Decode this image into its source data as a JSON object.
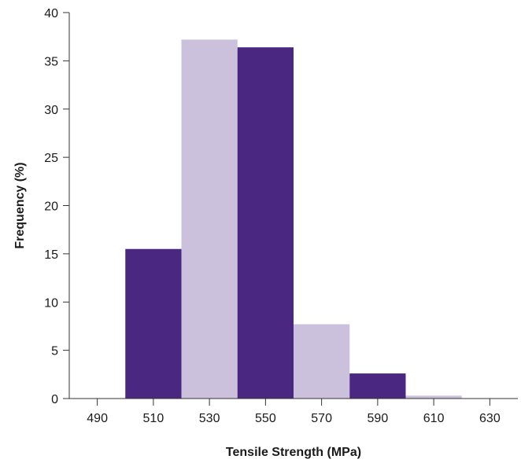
{
  "chart_data": {
    "type": "bar",
    "title": "",
    "xlabel": "Tensile Strength (MPa)",
    "ylabel": "Frequency (%)",
    "bin_width": 20,
    "xlim": [
      480,
      640
    ],
    "ylim": [
      0,
      40
    ],
    "x_ticks": [
      490,
      510,
      530,
      550,
      570,
      590,
      610,
      630
    ],
    "y_ticks": [
      0,
      5,
      10,
      15,
      20,
      25,
      30,
      35,
      40
    ],
    "bins": [
      {
        "start": 500,
        "end": 520,
        "value": 15.5,
        "color": "#4a2882"
      },
      {
        "start": 520,
        "end": 540,
        "value": 37.2,
        "color": "#cbc1dd"
      },
      {
        "start": 540,
        "end": 560,
        "value": 36.4,
        "color": "#4a2882"
      },
      {
        "start": 560,
        "end": 580,
        "value": 7.7,
        "color": "#cbc1dd"
      },
      {
        "start": 580,
        "end": 600,
        "value": 2.6,
        "color": "#4a2882"
      },
      {
        "start": 600,
        "end": 620,
        "value": 0.3,
        "color": "#cbc1dd"
      }
    ],
    "grid": false,
    "legend": "none"
  }
}
